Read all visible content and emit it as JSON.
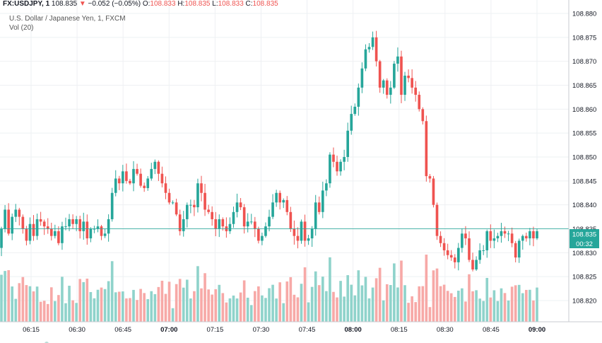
{
  "header": {
    "symbol": "FX:USDJPY, 1",
    "last": "108.835",
    "arrow": "▼",
    "change": "−0.052 (−0.05%)",
    "o_label": "O:",
    "o_value": "108.833",
    "h_label": "H:",
    "h_value": "108.835",
    "l_label": "L:",
    "l_value": "108.833",
    "c_label": "C:",
    "c_value": "108.835"
  },
  "chart_title": "U.S. Dollar / Japanese Yen, 1, FXCM",
  "volume_label": "Vol (20)",
  "price_tag": "108.835",
  "countdown_tag": "00:32",
  "colors": {
    "up": "#26a69a",
    "down": "#ef5350",
    "vol_up": "#8fd3cb",
    "vol_down": "#f7a9a7",
    "grid": "#eef0f3",
    "price_line": "#26a69a"
  },
  "chart_data": {
    "type": "candlestick",
    "title": "U.S. Dollar / Japanese Yen, 1, FXCM",
    "y_ticks": [
      "108.880",
      "108.875",
      "108.870",
      "108.865",
      "108.860",
      "108.855",
      "108.850",
      "108.845",
      "108.840",
      "108.835",
      "108.830",
      "108.825",
      "108.820"
    ],
    "x_ticks": [
      {
        "label": "06:15",
        "bold": false
      },
      {
        "label": "06:30",
        "bold": false
      },
      {
        "label": "06:45",
        "bold": false
      },
      {
        "label": "07:00",
        "bold": true
      },
      {
        "label": "07:15",
        "bold": false
      },
      {
        "label": "07:30",
        "bold": false
      },
      {
        "label": "07:45",
        "bold": false
      },
      {
        "label": "08:00",
        "bold": true
      },
      {
        "label": "08:15",
        "bold": false
      },
      {
        "label": "08:30",
        "bold": false
      },
      {
        "label": "08:45",
        "bold": false
      },
      {
        "label": "09:00",
        "bold": true
      }
    ],
    "ylim": [
      108.8155,
      108.8815
    ],
    "time_start": "06:03",
    "time_end": "09:00",
    "last_price": 108.835,
    "close": [
      108.8365,
      108.831,
      108.835,
      108.839,
      108.834,
      108.8375,
      108.839,
      108.8375,
      108.835,
      108.8325,
      108.836,
      108.8335,
      108.837,
      108.8365,
      108.8355,
      108.835,
      108.8335,
      108.8345,
      108.832,
      108.8355,
      108.8355,
      108.837,
      108.836,
      108.837,
      108.8345,
      108.8365,
      108.833,
      108.835,
      108.835,
      108.8355,
      108.8335,
      108.834,
      108.837,
      108.8425,
      108.8455,
      108.8445,
      108.847,
      108.845,
      108.8445,
      108.8475,
      108.8465,
      108.844,
      108.8435,
      108.8455,
      108.8475,
      108.849,
      108.8465,
      108.8445,
      108.8425,
      108.8405,
      108.8405,
      108.838,
      108.8345,
      108.837,
      108.84,
      108.84,
      108.8395,
      108.8445,
      108.8425,
      108.839,
      108.8385,
      108.837,
      108.835,
      108.837,
      108.8355,
      108.8345,
      108.836,
      108.8385,
      108.8405,
      108.8395,
      108.8355,
      108.8365,
      108.8365,
      108.835,
      108.8325,
      108.8335,
      108.8355,
      108.8375,
      108.8405,
      108.8425,
      108.8405,
      108.841,
      108.8385,
      108.835,
      108.8335,
      108.8325,
      108.8365,
      108.8325,
      108.833,
      108.835,
      108.8405,
      108.8385,
      108.843,
      108.8445,
      108.8505,
      108.849,
      108.847,
      108.849,
      108.85,
      108.8555,
      108.859,
      108.8605,
      108.8645,
      108.8685,
      108.8725,
      108.873,
      108.875,
      108.87,
      108.8645,
      108.866,
      108.863,
      108.8645,
      108.8695,
      108.871,
      108.863,
      108.867,
      108.8665,
      108.8645,
      108.863,
      108.86,
      108.8575,
      108.846,
      108.8455,
      108.84,
      108.8335,
      108.832,
      108.8305,
      108.8295,
      108.829,
      108.828,
      108.831,
      108.834,
      108.833,
      108.8285,
      108.8265,
      108.8285,
      108.8305,
      108.8305,
      108.8345,
      108.8325,
      108.833,
      108.8335,
      108.8345,
      108.834,
      108.834,
      108.832,
      108.829,
      108.8325,
      108.8335,
      108.833,
      108.8345,
      108.833,
      108.8345
    ]
  }
}
